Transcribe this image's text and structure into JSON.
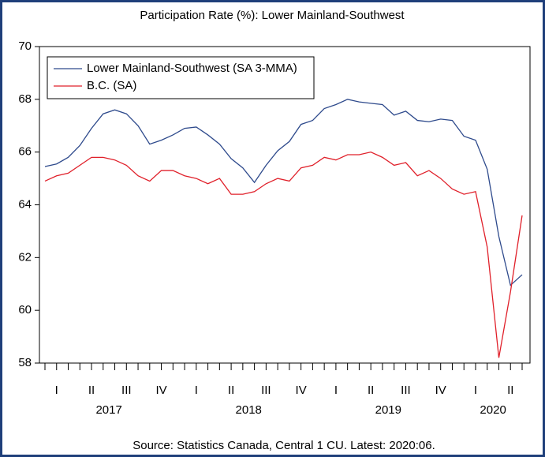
{
  "chart_data": {
    "type": "line",
    "title": "Participation Rate (%): Lower Mainland-Southwest",
    "source": "Source: Statistics Canada, Central 1 CU. Latest: 2020:06.",
    "categories": [
      null,
      "I",
      null,
      null,
      "II",
      null,
      null,
      "III",
      null,
      null,
      "IV",
      null,
      null,
      "I",
      null,
      null,
      "II",
      null,
      null,
      "III",
      null,
      null,
      "IV",
      null,
      null,
      "I",
      null,
      null,
      "II",
      null,
      null,
      "III",
      null,
      null,
      "IV",
      null,
      null,
      "I",
      null,
      null,
      "II",
      null
    ],
    "years": [
      "2017",
      "2018",
      "2019",
      "2020"
    ],
    "series": [
      {
        "name": "Lower Mainland-Southwest (SA 3-MMA)",
        "color": "#2e4a8c",
        "values": [
          65.45,
          65.55,
          65.8,
          66.25,
          66.9,
          67.45,
          67.6,
          67.45,
          67.0,
          66.3,
          66.45,
          66.65,
          66.9,
          66.95,
          66.65,
          66.3,
          65.75,
          65.4,
          64.85,
          65.5,
          66.05,
          66.4,
          67.05,
          67.2,
          67.65,
          67.8,
          68.0,
          67.9,
          67.85,
          67.8,
          67.4,
          67.55,
          67.2,
          67.15,
          67.25,
          67.2,
          66.6,
          66.45,
          65.35,
          62.8,
          60.95,
          61.35
        ]
      },
      {
        "name": "B.C. (SA)",
        "color": "#e0202a",
        "values": [
          64.9,
          65.1,
          65.2,
          65.5,
          65.8,
          65.8,
          65.7,
          65.5,
          65.1,
          64.9,
          65.3,
          65.3,
          65.1,
          65.0,
          64.8,
          65.0,
          64.4,
          64.4,
          64.5,
          64.8,
          65.0,
          64.9,
          65.4,
          65.5,
          65.8,
          65.7,
          65.9,
          65.9,
          66.0,
          65.8,
          65.5,
          65.6,
          65.1,
          65.3,
          65.0,
          64.6,
          64.4,
          64.5,
          62.4,
          58.2,
          60.7,
          63.6
        ]
      }
    ],
    "ylim": [
      58,
      70
    ],
    "yticks": [
      58,
      60,
      62,
      64,
      66,
      68,
      70
    ],
    "grid": false,
    "legend": "top-left"
  }
}
